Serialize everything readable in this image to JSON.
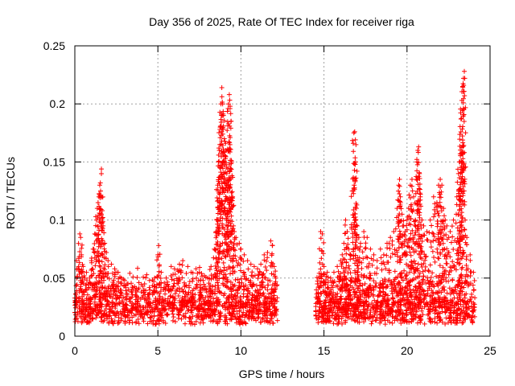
{
  "chart_data": {
    "type": "scatter",
    "title": "Day 356 of 2025, Rate Of TEC Index for receiver riga",
    "xlabel": "GPS time / hours",
    "ylabel": "ROTI / TECUs",
    "xlim": [
      0,
      25
    ],
    "ylim": [
      0,
      0.25
    ],
    "xticks": [
      0,
      5,
      10,
      15,
      20,
      25
    ],
    "yticks": [
      0,
      0.05,
      0.1,
      0.15,
      0.2,
      0.25
    ],
    "xtick_labels": [
      "0",
      "5",
      "10",
      "15",
      "20",
      "25"
    ],
    "ytick_labels": [
      "0",
      "0.05",
      "0.1",
      "0.15",
      "0.2",
      "0.25"
    ],
    "grid": true,
    "marker": "+",
    "color": "#ff0000",
    "data_gap_hours": [
      12.2,
      14.5
    ],
    "points": [
      [
        0.1,
        0.065
      ],
      [
        0.2,
        0.058
      ],
      [
        0.3,
        0.088
      ],
      [
        0.35,
        0.085
      ],
      [
        0.4,
        0.07
      ],
      [
        0.5,
        0.06
      ],
      [
        0.7,
        0.055
      ],
      [
        0.9,
        0.05
      ],
      [
        1.0,
        0.065
      ],
      [
        1.1,
        0.075
      ],
      [
        1.2,
        0.088
      ],
      [
        1.3,
        0.1
      ],
      [
        1.35,
        0.11
      ],
      [
        1.4,
        0.115
      ],
      [
        1.45,
        0.12
      ],
      [
        1.5,
        0.13
      ],
      [
        1.55,
        0.125
      ],
      [
        1.6,
        0.144
      ],
      [
        1.65,
        0.108
      ],
      [
        1.7,
        0.095
      ],
      [
        1.8,
        0.08
      ],
      [
        1.9,
        0.072
      ],
      [
        2.0,
        0.065
      ],
      [
        2.2,
        0.062
      ],
      [
        2.4,
        0.058
      ],
      [
        2.6,
        0.055
      ],
      [
        2.8,
        0.05
      ],
      [
        3.0,
        0.048
      ],
      [
        3.2,
        0.045
      ],
      [
        3.5,
        0.042
      ],
      [
        3.8,
        0.04
      ],
      [
        4.0,
        0.038
      ],
      [
        4.2,
        0.045
      ],
      [
        4.5,
        0.048
      ],
      [
        4.8,
        0.05
      ],
      [
        5.0,
        0.07
      ],
      [
        5.05,
        0.078
      ],
      [
        5.2,
        0.055
      ],
      [
        5.5,
        0.05
      ],
      [
        5.8,
        0.06
      ],
      [
        6.0,
        0.058
      ],
      [
        6.3,
        0.062
      ],
      [
        6.5,
        0.065
      ],
      [
        6.8,
        0.06
      ],
      [
        7.0,
        0.055
      ],
      [
        7.3,
        0.058
      ],
      [
        7.5,
        0.055
      ],
      [
        7.8,
        0.052
      ],
      [
        8.0,
        0.05
      ],
      [
        8.2,
        0.06
      ],
      [
        8.4,
        0.075
      ],
      [
        8.5,
        0.09
      ],
      [
        8.55,
        0.1
      ],
      [
        8.6,
        0.13
      ],
      [
        8.65,
        0.15
      ],
      [
        8.7,
        0.16
      ],
      [
        8.75,
        0.18
      ],
      [
        8.8,
        0.2
      ],
      [
        8.85,
        0.214
      ],
      [
        8.9,
        0.2
      ],
      [
        8.95,
        0.19
      ],
      [
        9.0,
        0.17
      ],
      [
        9.05,
        0.155
      ],
      [
        9.1,
        0.16
      ],
      [
        9.15,
        0.14
      ],
      [
        9.2,
        0.13
      ],
      [
        9.25,
        0.2
      ],
      [
        9.3,
        0.208
      ],
      [
        9.35,
        0.198
      ],
      [
        9.4,
        0.185
      ],
      [
        9.45,
        0.15
      ],
      [
        9.5,
        0.12
      ],
      [
        9.55,
        0.095
      ],
      [
        9.6,
        0.09
      ],
      [
        9.7,
        0.085
      ],
      [
        9.9,
        0.08
      ],
      [
        10.0,
        0.075
      ],
      [
        10.2,
        0.07
      ],
      [
        10.4,
        0.065
      ],
      [
        10.6,
        0.062
      ],
      [
        10.8,
        0.06
      ],
      [
        11.0,
        0.058
      ],
      [
        11.2,
        0.062
      ],
      [
        11.4,
        0.07
      ],
      [
        11.6,
        0.072
      ],
      [
        11.8,
        0.082
      ],
      [
        11.9,
        0.078
      ],
      [
        12.0,
        0.06
      ],
      [
        12.1,
        0.05
      ],
      [
        14.6,
        0.045
      ],
      [
        14.7,
        0.05
      ],
      [
        14.8,
        0.09
      ],
      [
        14.9,
        0.088
      ],
      [
        15.0,
        0.06
      ],
      [
        15.2,
        0.055
      ],
      [
        15.4,
        0.05
      ],
      [
        15.6,
        0.055
      ],
      [
        15.8,
        0.06
      ],
      [
        16.0,
        0.065
      ],
      [
        16.1,
        0.07
      ],
      [
        16.2,
        0.08
      ],
      [
        16.3,
        0.1
      ],
      [
        16.4,
        0.09
      ],
      [
        16.5,
        0.075
      ],
      [
        16.6,
        0.07
      ],
      [
        16.7,
        0.125
      ],
      [
        16.8,
        0.175
      ],
      [
        16.85,
        0.176
      ],
      [
        16.9,
        0.15
      ],
      [
        16.95,
        0.11
      ],
      [
        17.0,
        0.095
      ],
      [
        17.1,
        0.085
      ],
      [
        17.2,
        0.08
      ],
      [
        17.4,
        0.09
      ],
      [
        17.6,
        0.085
      ],
      [
        17.8,
        0.075
      ],
      [
        18.0,
        0.07
      ],
      [
        18.2,
        0.065
      ],
      [
        18.4,
        0.075
      ],
      [
        18.6,
        0.07
      ],
      [
        18.8,
        0.08
      ],
      [
        19.0,
        0.085
      ],
      [
        19.2,
        0.09
      ],
      [
        19.4,
        0.11
      ],
      [
        19.5,
        0.13
      ],
      [
        19.55,
        0.135
      ],
      [
        19.6,
        0.12
      ],
      [
        19.7,
        0.105
      ],
      [
        19.8,
        0.095
      ],
      [
        19.9,
        0.09
      ],
      [
        20.0,
        0.1
      ],
      [
        20.1,
        0.11
      ],
      [
        20.2,
        0.13
      ],
      [
        20.3,
        0.135
      ],
      [
        20.4,
        0.12
      ],
      [
        20.5,
        0.1
      ],
      [
        20.6,
        0.15
      ],
      [
        20.65,
        0.16
      ],
      [
        20.7,
        0.163
      ],
      [
        20.75,
        0.14
      ],
      [
        20.8,
        0.12
      ],
      [
        20.9,
        0.1
      ],
      [
        21.0,
        0.095
      ],
      [
        21.2,
        0.09
      ],
      [
        21.4,
        0.1
      ],
      [
        21.6,
        0.12
      ],
      [
        21.8,
        0.115
      ],
      [
        21.9,
        0.13
      ],
      [
        22.0,
        0.135
      ],
      [
        22.1,
        0.13
      ],
      [
        22.2,
        0.11
      ],
      [
        22.3,
        0.1
      ],
      [
        22.4,
        0.095
      ],
      [
        22.6,
        0.09
      ],
      [
        22.8,
        0.1
      ],
      [
        23.0,
        0.12
      ],
      [
        23.1,
        0.14
      ],
      [
        23.15,
        0.15
      ],
      [
        23.2,
        0.157
      ],
      [
        23.25,
        0.187
      ],
      [
        23.3,
        0.203
      ],
      [
        23.35,
        0.215
      ],
      [
        23.4,
        0.222
      ],
      [
        23.45,
        0.228
      ],
      [
        23.5,
        0.1
      ],
      [
        23.6,
        0.085
      ],
      [
        23.8,
        0.07
      ],
      [
        24.0,
        0.055
      ]
    ]
  }
}
